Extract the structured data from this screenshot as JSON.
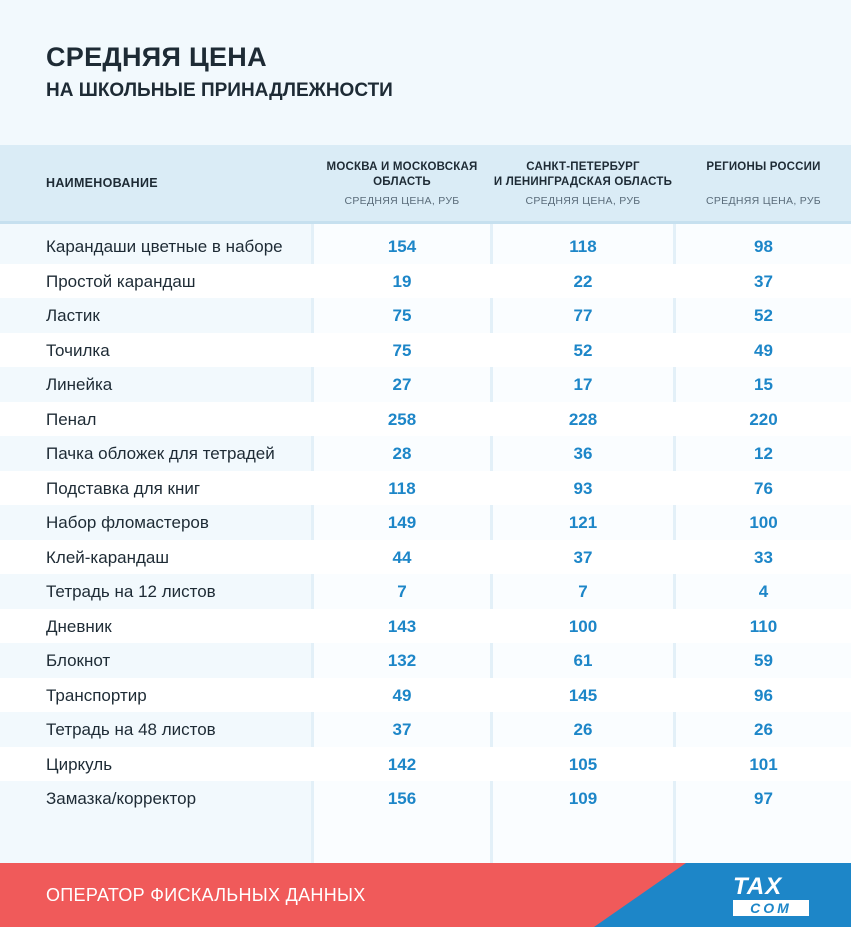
{
  "title": "СРЕДНЯЯ ЦЕНА",
  "subtitle": "НА ШКОЛЬНЫЕ ПРИНАДЛЕЖНОСТИ",
  "header": {
    "name_col": "НАИМЕНОВАНИЕ",
    "regions": [
      {
        "line1": "МОСКВА И МОСКОВСКАЯ",
        "line2": "ОБЛАСТЬ",
        "unit": "СРЕДНЯЯ ЦЕНА, РУБ"
      },
      {
        "line1": "САНКТ-ПЕТЕРБУРГ",
        "line2": "И ЛЕНИНГРАДСКАЯ ОБЛАСТЬ",
        "unit": "СРЕДНЯЯ ЦЕНА, РУБ"
      },
      {
        "line1": "РЕГИОНЫ РОССИИ",
        "line2": "",
        "unit": "СРЕДНЯЯ ЦЕНА, РУБ"
      }
    ]
  },
  "footer": {
    "text": "ОПЕРАТОР ФИСКАЛЬНЫХ ДАННЫХ",
    "logo_top": "TAX",
    "logo_bottom": "COM"
  },
  "colors": {
    "accent_blue": "#1d86c8",
    "footer_red": "#f05a5a",
    "footer_blue": "#1d86c8",
    "text_dark": "#1e2b35"
  },
  "chart_data": {
    "type": "table",
    "title": "СРЕДНЯЯ ЦЕНА",
    "subtitle": "НА ШКОЛЬНЫЕ ПРИНАДЛЕЖНОСТИ",
    "columns": [
      "НАИМЕНОВАНИЕ",
      "МОСКВА И МОСКОВСКАЯ ОБЛАСТЬ",
      "САНКТ-ПЕТЕРБУРГ И ЛЕНИНГРАДСКАЯ ОБЛАСТЬ",
      "РЕГИОНЫ РОССИИ"
    ],
    "unit": "СРЕДНЯЯ ЦЕНА, РУБ",
    "rows": [
      {
        "name": "Карандаши цветные в наборе",
        "values": [
          "154",
          "118",
          "98"
        ]
      },
      {
        "name": "Простой карандаш",
        "values": [
          "19",
          "22",
          "37"
        ]
      },
      {
        "name": "Ластик",
        "values": [
          "75",
          "77",
          "52"
        ]
      },
      {
        "name": "Точилка",
        "values": [
          "75",
          "52",
          "49"
        ]
      },
      {
        "name": "Линейка",
        "values": [
          "27",
          "17",
          "15"
        ]
      },
      {
        "name": "Пенал",
        "values": [
          "258",
          "228",
          "220"
        ]
      },
      {
        "name": "Пачка обложек для тетрадей",
        "values": [
          "28",
          "36",
          "12"
        ]
      },
      {
        "name": "Подставка для книг",
        "values": [
          "118",
          "93",
          "76"
        ]
      },
      {
        "name": "Набор фломастеров",
        "values": [
          "149",
          "121",
          "100"
        ]
      },
      {
        "name": "Клей-карандаш",
        "values": [
          "44",
          "37",
          "33"
        ]
      },
      {
        "name": "Тетрадь на 12 листов",
        "values": [
          "7",
          "7",
          "4"
        ]
      },
      {
        "name": "Дневник",
        "values": [
          "143",
          "100",
          "110"
        ]
      },
      {
        "name": "Блокнот",
        "values": [
          "132",
          "61",
          "59"
        ]
      },
      {
        "name": "Транспортир",
        "values": [
          "49",
          "145",
          "96"
        ]
      },
      {
        "name": "Тетрадь на 48 листов",
        "values": [
          "37",
          "26",
          "26"
        ]
      },
      {
        "name": "Циркуль",
        "values": [
          "142",
          "105",
          "101"
        ]
      },
      {
        "name": "Замазка/корректор",
        "values": [
          "156",
          "109",
          "97"
        ]
      }
    ]
  }
}
